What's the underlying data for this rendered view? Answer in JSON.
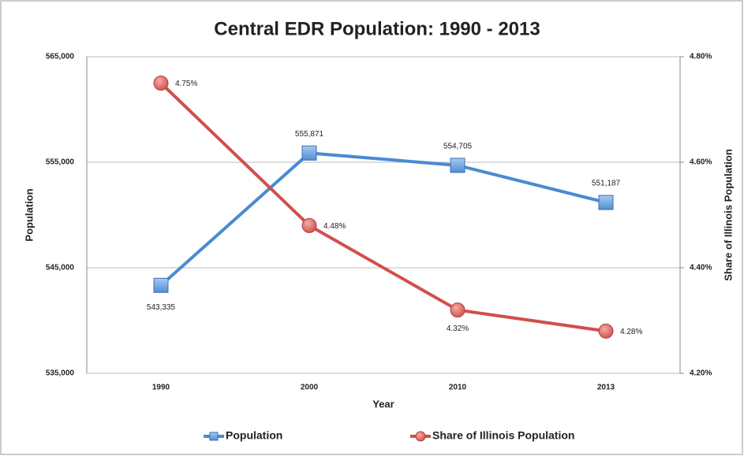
{
  "chart_data": {
    "type": "line",
    "title": "Central EDR Population: 1990 - 2013",
    "x_label": "Year",
    "y_label": "Population",
    "y2_label": "Share of Illinois Population",
    "categories": [
      "1990",
      "2000",
      "2010",
      "2013"
    ],
    "series": [
      {
        "name": "Population",
        "color": "#4a8ad0",
        "values": [
          543335,
          555871,
          554705,
          551187
        ],
        "value_labels": [
          "543,335",
          "555,871",
          "554,705",
          "551,187"
        ]
      },
      {
        "name": "Share of Illinois Population",
        "color": "#d0504b",
        "axis": "y2",
        "values": [
          4.75,
          4.48,
          4.32,
          4.28
        ],
        "value_labels": [
          "4.75%",
          "4.48%",
          "4.32%",
          "4.28%"
        ]
      }
    ],
    "ylim": [
      535000,
      565000
    ],
    "yticks": [
      {
        "value": 535000,
        "label": "535,000"
      },
      {
        "value": 545000,
        "label": "545,000"
      },
      {
        "value": 555000,
        "label": "555,000"
      },
      {
        "value": 565000,
        "label": "565,000"
      }
    ],
    "y2lim": [
      4.2,
      4.8
    ],
    "y2ticks": [
      {
        "value": 4.2,
        "label": "4.20%"
      },
      {
        "value": 4.4,
        "label": "4.40%"
      },
      {
        "value": 4.6,
        "label": "4.60%"
      },
      {
        "value": 4.8,
        "label": "4.80%"
      }
    ],
    "grid": true,
    "legend": "bottom"
  }
}
